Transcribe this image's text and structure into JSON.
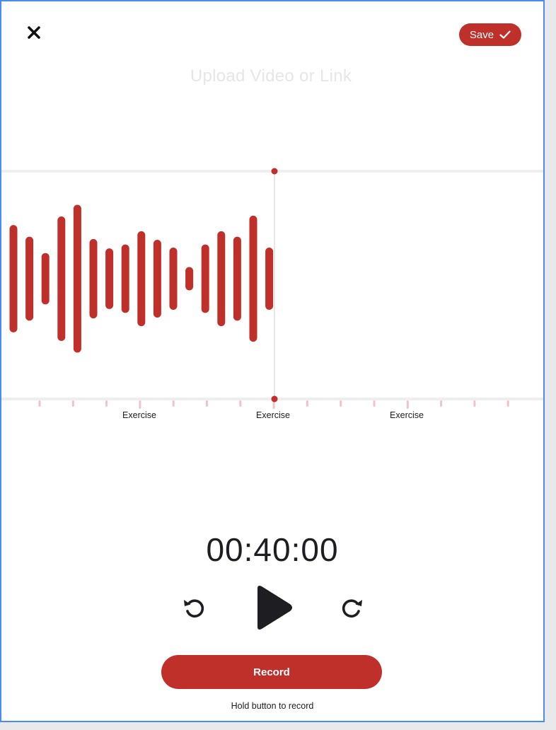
{
  "header": {
    "close_icon": "close-icon",
    "save_label": "Save",
    "save_icon": "checkmark-icon"
  },
  "upload": {
    "label": "Upload Video or Link"
  },
  "waveform": {
    "bar_levels": [
      0.69,
      0.54,
      0.33,
      0.8,
      0.95,
      0.51,
      0.39,
      0.44,
      0.61,
      0.5,
      0.4,
      0.15,
      0.44,
      0.61,
      0.54,
      0.81,
      0.4
    ],
    "markers": [
      "Exercise",
      "Exercise",
      "Exercise"
    ]
  },
  "player": {
    "time": "00:40:00",
    "rewind_icon": "rewind-icon",
    "play_icon": "play-icon",
    "forward_icon": "forward-icon"
  },
  "record": {
    "label": "Record",
    "hint": "Hold button to record"
  },
  "colors": {
    "accent": "#c0302a",
    "tick": "#f0c4c4",
    "line": "#eeeeee",
    "dark": "#1d1d22"
  }
}
